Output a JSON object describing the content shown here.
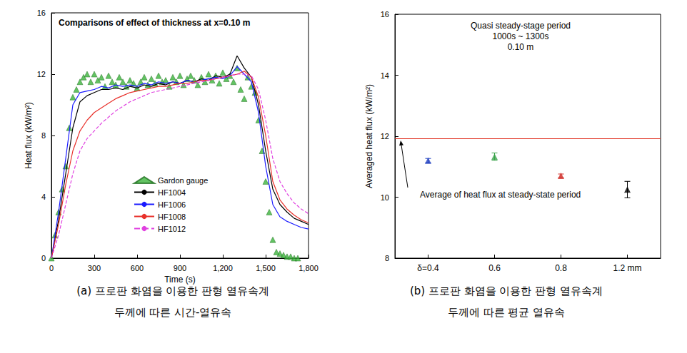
{
  "chart_data": [
    {
      "type": "line",
      "title": "Comparisons of effect of thickness at x=0.10 m",
      "caption": [
        "(a) 프로판 화염을 이용한 판형 열유속계",
        "두께에 따른 시간-열유속"
      ],
      "x_label": "Time (s)",
      "y_label": "Heat flux (kW/m²)",
      "xlim": [
        0,
        1800
      ],
      "xticks": [
        0,
        300,
        600,
        900,
        1200,
        1500,
        1800
      ],
      "ylim": [
        0,
        16
      ],
      "yticks": [
        0,
        4,
        8,
        12,
        16
      ],
      "grid": false,
      "legend": "lower center",
      "series": [
        {
          "name": "Gardon gauge",
          "type": "scatter",
          "marker": "triangle",
          "color": "#3cb43c",
          "x": [
            0,
            25,
            50,
            75,
            100,
            125,
            150,
            175,
            200,
            225,
            250,
            275,
            300,
            325,
            350,
            375,
            400,
            425,
            450,
            475,
            500,
            525,
            550,
            575,
            600,
            625,
            650,
            675,
            700,
            725,
            750,
            775,
            800,
            825,
            850,
            875,
            900,
            925,
            950,
            975,
            1000,
            1025,
            1050,
            1075,
            1100,
            1125,
            1150,
            1175,
            1200,
            1225,
            1250,
            1275,
            1300,
            1325,
            1350,
            1375,
            1400,
            1425,
            1450,
            1475,
            1500,
            1525,
            1550,
            1575,
            1600,
            1625,
            1650,
            1675,
            1700,
            1725
          ],
          "values": [
            0,
            1.5,
            3,
            4.5,
            6,
            8.5,
            10.5,
            11,
            11.5,
            11.8,
            12,
            11.5,
            12,
            11.6,
            11.8,
            11.2,
            11.9,
            11.5,
            11.3,
            11.8,
            11.5,
            11.2,
            11.6,
            11.4,
            11.1,
            11.5,
            11.8,
            11.3,
            11.7,
            11.4,
            11.9,
            11.5,
            11.6,
            11.2,
            11.8,
            11.5,
            11.9,
            11.3,
            11.7,
            11.9,
            11.6,
            11.3,
            11.8,
            11.5,
            12.0,
            11.6,
            11.9,
            11.4,
            12.1,
            11.7,
            11.9,
            11.5,
            12.4,
            11.0,
            10.4,
            11.8,
            11.2,
            10.8,
            9.0,
            7.0,
            5.0,
            3.0,
            1.2,
            0.4,
            0.3,
            0.2,
            0.1,
            0.1,
            0.0,
            0.0
          ]
        },
        {
          "name": "HF1004",
          "type": "line",
          "line_style": "solid",
          "color": "#000000",
          "x": [
            0,
            50,
            100,
            150,
            200,
            250,
            300,
            350,
            400,
            450,
            500,
            550,
            600,
            650,
            700,
            750,
            800,
            850,
            900,
            950,
            1000,
            1050,
            1100,
            1150,
            1200,
            1250,
            1300,
            1350,
            1400,
            1450,
            1500,
            1550,
            1600,
            1650,
            1700,
            1750,
            1800
          ],
          "values": [
            0,
            2.5,
            5.5,
            8.5,
            10.2,
            10.6,
            10.8,
            11.0,
            11.0,
            11.1,
            11.0,
            11.2,
            11.1,
            11.3,
            11.2,
            11.4,
            11.3,
            11.5,
            11.4,
            11.6,
            11.5,
            11.7,
            11.6,
            11.9,
            11.8,
            12.0,
            13.2,
            12.4,
            11.8,
            10.0,
            7.0,
            4.5,
            3.5,
            3.0,
            2.6,
            2.4,
            2.2
          ]
        },
        {
          "name": "HF1006",
          "type": "line",
          "line_style": "solid",
          "color": "#1a1aff",
          "x": [
            0,
            50,
            100,
            150,
            200,
            250,
            300,
            350,
            400,
            450,
            500,
            550,
            600,
            650,
            700,
            750,
            800,
            850,
            900,
            950,
            1000,
            1050,
            1100,
            1150,
            1200,
            1250,
            1300,
            1350,
            1400,
            1450,
            1500,
            1550,
            1600,
            1650,
            1700,
            1750,
            1800
          ],
          "values": [
            0,
            3.0,
            6.5,
            10.0,
            10.8,
            10.9,
            11.0,
            11.2,
            11.1,
            11.3,
            11.2,
            11.3,
            11.2,
            11.4,
            11.3,
            11.5,
            11.4,
            11.5,
            11.4,
            11.6,
            11.5,
            11.6,
            11.7,
            11.8,
            11.7,
            11.9,
            12.5,
            12.0,
            11.5,
            9.5,
            6.0,
            3.5,
            2.7,
            2.4,
            2.2,
            2.0,
            1.9
          ]
        },
        {
          "name": "HF1008",
          "type": "line",
          "line_style": "solid",
          "color": "#e8302a",
          "x": [
            0,
            50,
            100,
            150,
            200,
            250,
            300,
            350,
            400,
            450,
            500,
            550,
            600,
            650,
            700,
            750,
            800,
            850,
            900,
            950,
            1000,
            1050,
            1100,
            1150,
            1200,
            1250,
            1300,
            1350,
            1400,
            1450,
            1500,
            1550,
            1600,
            1650,
            1700,
            1750,
            1800
          ],
          "values": [
            0,
            2.2,
            4.8,
            7.0,
            8.3,
            9.0,
            9.5,
            9.8,
            10.1,
            10.4,
            10.6,
            10.8,
            10.9,
            11.0,
            11.1,
            11.2,
            11.2,
            11.3,
            11.4,
            11.4,
            11.5,
            11.6,
            11.6,
            11.7,
            11.8,
            11.9,
            12.0,
            12.2,
            11.8,
            10.5,
            8.0,
            5.0,
            3.8,
            3.2,
            2.8,
            2.5,
            2.3
          ]
        },
        {
          "name": "HF1012",
          "type": "line",
          "line_style": "dashed",
          "color": "#e040e0",
          "x": [
            0,
            50,
            100,
            150,
            200,
            250,
            300,
            350,
            400,
            450,
            500,
            550,
            600,
            650,
            700,
            750,
            800,
            850,
            900,
            950,
            1000,
            1050,
            1100,
            1150,
            1200,
            1250,
            1300,
            1350,
            1400,
            1450,
            1500,
            1550,
            1600,
            1650,
            1700,
            1750,
            1800
          ],
          "values": [
            0,
            1.5,
            3.5,
            5.5,
            7.0,
            7.8,
            8.3,
            8.8,
            9.2,
            9.6,
            9.9,
            10.2,
            10.4,
            10.6,
            10.8,
            10.9,
            11.0,
            11.1,
            11.2,
            11.3,
            11.4,
            11.5,
            11.6,
            11.7,
            11.8,
            11.9,
            12.0,
            12.0,
            11.9,
            11.0,
            9.0,
            6.5,
            5.0,
            4.2,
            3.6,
            3.2,
            2.9
          ]
        }
      ]
    },
    {
      "type": "scatter",
      "annotations": [
        "Quasi steady-stage period",
        "1000s ~ 1300s",
        "0.10 m"
      ],
      "caption": [
        "(b) 프로판 화염을 이용한 판형 열유속계",
        "두께에 따른 평균 열유속"
      ],
      "y_label": "Averaged heat flux (kW/m²)",
      "categories": [
        "δ=0.4",
        "0.6",
        "0.8",
        "1.2 mm"
      ],
      "values": [
        11.2,
        11.33,
        10.7,
        10.25
      ],
      "errors": [
        0.07,
        0.12,
        0.06,
        0.27
      ],
      "colors": [
        "#2040c0",
        "#3aa34a",
        "#d0302a",
        "#000000"
      ],
      "marker": "triangle",
      "ylim": [
        8,
        16
      ],
      "yticks": [
        8,
        10,
        12,
        14,
        16
      ],
      "grid": false,
      "reference_line": {
        "value": 11.93,
        "label": "Average of heat flux at steady-state period",
        "color": "#e03020"
      }
    }
  ]
}
